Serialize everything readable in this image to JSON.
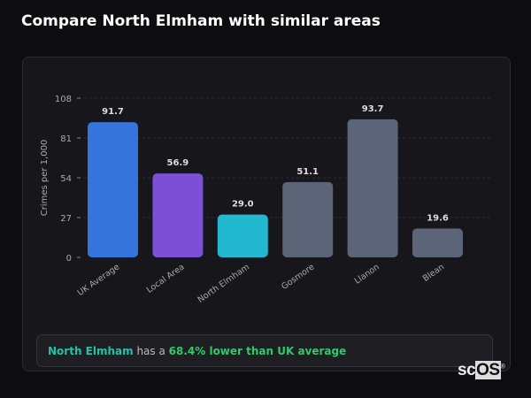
{
  "title": "Compare North Elmham with similar areas",
  "chart_data": {
    "type": "bar",
    "categories": [
      "UK Average",
      "Local Area",
      "North Elmham",
      "Gosmore",
      "Llanon",
      "Blean"
    ],
    "values": [
      91.7,
      56.9,
      29.0,
      51.1,
      93.7,
      19.6
    ],
    "value_labels": [
      "91.7",
      "56.9",
      "29.0",
      "51.1",
      "93.7",
      "19.6"
    ],
    "colors": [
      "#3574db",
      "#7b4fd6",
      "#22b8d0",
      "#5b6577",
      "#5b6577",
      "#5b6577"
    ],
    "ylabel": "Crimes per 1,000",
    "ylim": [
      0,
      108
    ],
    "yticks": [
      "0",
      "27",
      "54",
      "81",
      "108"
    ],
    "grid": true
  },
  "summary": {
    "area": "North Elmham",
    "middle": " has a ",
    "comparison": "68.4% lower than UK average"
  },
  "logo": {
    "prefix": "sc",
    "box": "OS",
    "mark": "®"
  }
}
